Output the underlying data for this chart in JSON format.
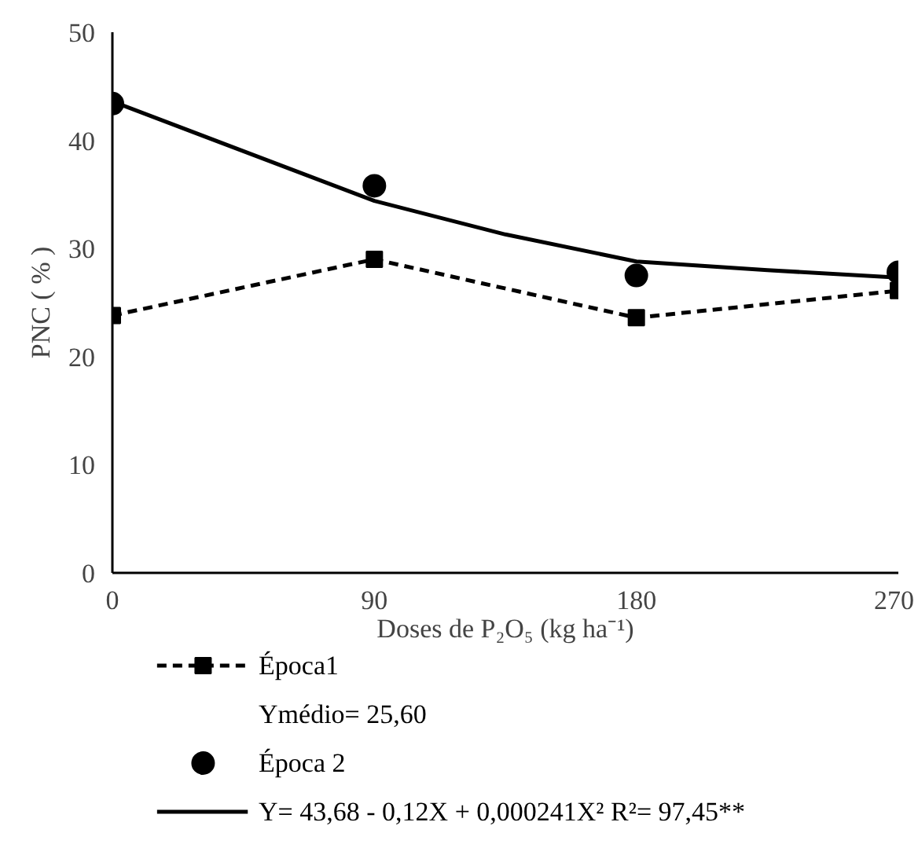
{
  "chart_data": {
    "type": "line",
    "xlabel": "Doses de P₂O₅ (kg ha⁻¹)",
    "ylabel": "PNC ( % )",
    "x": [
      0,
      90,
      180,
      270
    ],
    "xlim": [
      0,
      270
    ],
    "xticks": [
      0,
      90,
      180,
      270
    ],
    "ylim": [
      0,
      50
    ],
    "yticks": [
      0,
      10,
      20,
      30,
      40,
      50
    ],
    "grid": false,
    "legend": "bottom",
    "annotations": [
      "Ymédio= 25,60"
    ],
    "series": [
      {
        "name": "Época1",
        "type": "line",
        "color": "#000000",
        "marker": "square",
        "line_style": "dashed",
        "values": [
          23.8,
          29.0,
          23.6,
          26.1
        ]
      },
      {
        "name": "Época 2",
        "type": "scatter",
        "color": "#000000",
        "marker": "circle",
        "values": [
          43.4,
          35.8,
          27.5,
          27.8
        ]
      },
      {
        "name": "Y=  43,68 - 0,12X + 0,000241X²  R²= 97,45**",
        "type": "line",
        "color": "#000000",
        "marker": "none",
        "line_style": "solid",
        "x": [
          0,
          45,
          90,
          135,
          180,
          225,
          270
        ],
        "values": [
          43.6,
          39.0,
          34.4,
          31.3,
          28.8,
          28.0,
          27.3
        ]
      }
    ]
  }
}
